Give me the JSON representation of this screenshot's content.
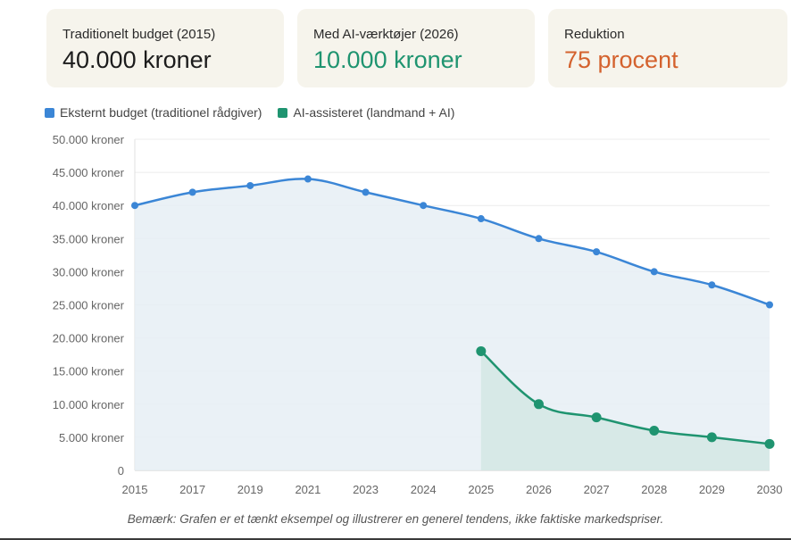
{
  "stats": [
    {
      "label": "Traditionelt budget (2015)",
      "value": "40.000 kroner",
      "color": "#1c1c1c"
    },
    {
      "label": "Med AI-værktøjer (2026)",
      "value": "10.000 kroner",
      "color": "#1f9470"
    },
    {
      "label": "Reduktion",
      "value": "75 procent",
      "color": "#d4622e"
    }
  ],
  "note": "Bemærk: Grafen er et tænkt eksempel og illustrerer en generel tendens, ikke faktiske markedspriser.",
  "chart_data": {
    "type": "line",
    "title": "",
    "xlabel": "",
    "ylabel": "",
    "categories": [
      "2015",
      "2017",
      "2019",
      "2021",
      "2023",
      "2024",
      "2025",
      "2026",
      "2027",
      "2028",
      "2029",
      "2030"
    ],
    "ylim": [
      0,
      50000
    ],
    "y_ticks": [
      {
        "value": 0,
        "label": "0"
      },
      {
        "value": 5000,
        "label": "5.000 kroner"
      },
      {
        "value": 10000,
        "label": "10.000 kroner"
      },
      {
        "value": 15000,
        "label": "15.000 kroner"
      },
      {
        "value": 20000,
        "label": "20.000 kroner"
      },
      {
        "value": 25000,
        "label": "25.000 kroner"
      },
      {
        "value": 30000,
        "label": "30.000 kroner"
      },
      {
        "value": 35000,
        "label": "35.000 kroner"
      },
      {
        "value": 40000,
        "label": "40.000 kroner"
      },
      {
        "value": 45000,
        "label": "45.000 kroner"
      },
      {
        "value": 50000,
        "label": "50.000 kroner"
      }
    ],
    "legend_position": "top-left",
    "grid": true,
    "series": [
      {
        "name": "Eksternt budget (traditionel rådgiver)",
        "color": "#3b86d6",
        "fill": "#e6eff5",
        "values": [
          40000,
          42000,
          43000,
          44000,
          42000,
          40000,
          38000,
          35000,
          33000,
          30000,
          28000,
          25000
        ]
      },
      {
        "name": "AI-assisteret (landmand + AI)",
        "color": "#1f9470",
        "fill": "#d4e8e4",
        "values": [
          null,
          null,
          null,
          null,
          null,
          null,
          18000,
          10000,
          8000,
          6000,
          5000,
          4000
        ]
      }
    ]
  }
}
